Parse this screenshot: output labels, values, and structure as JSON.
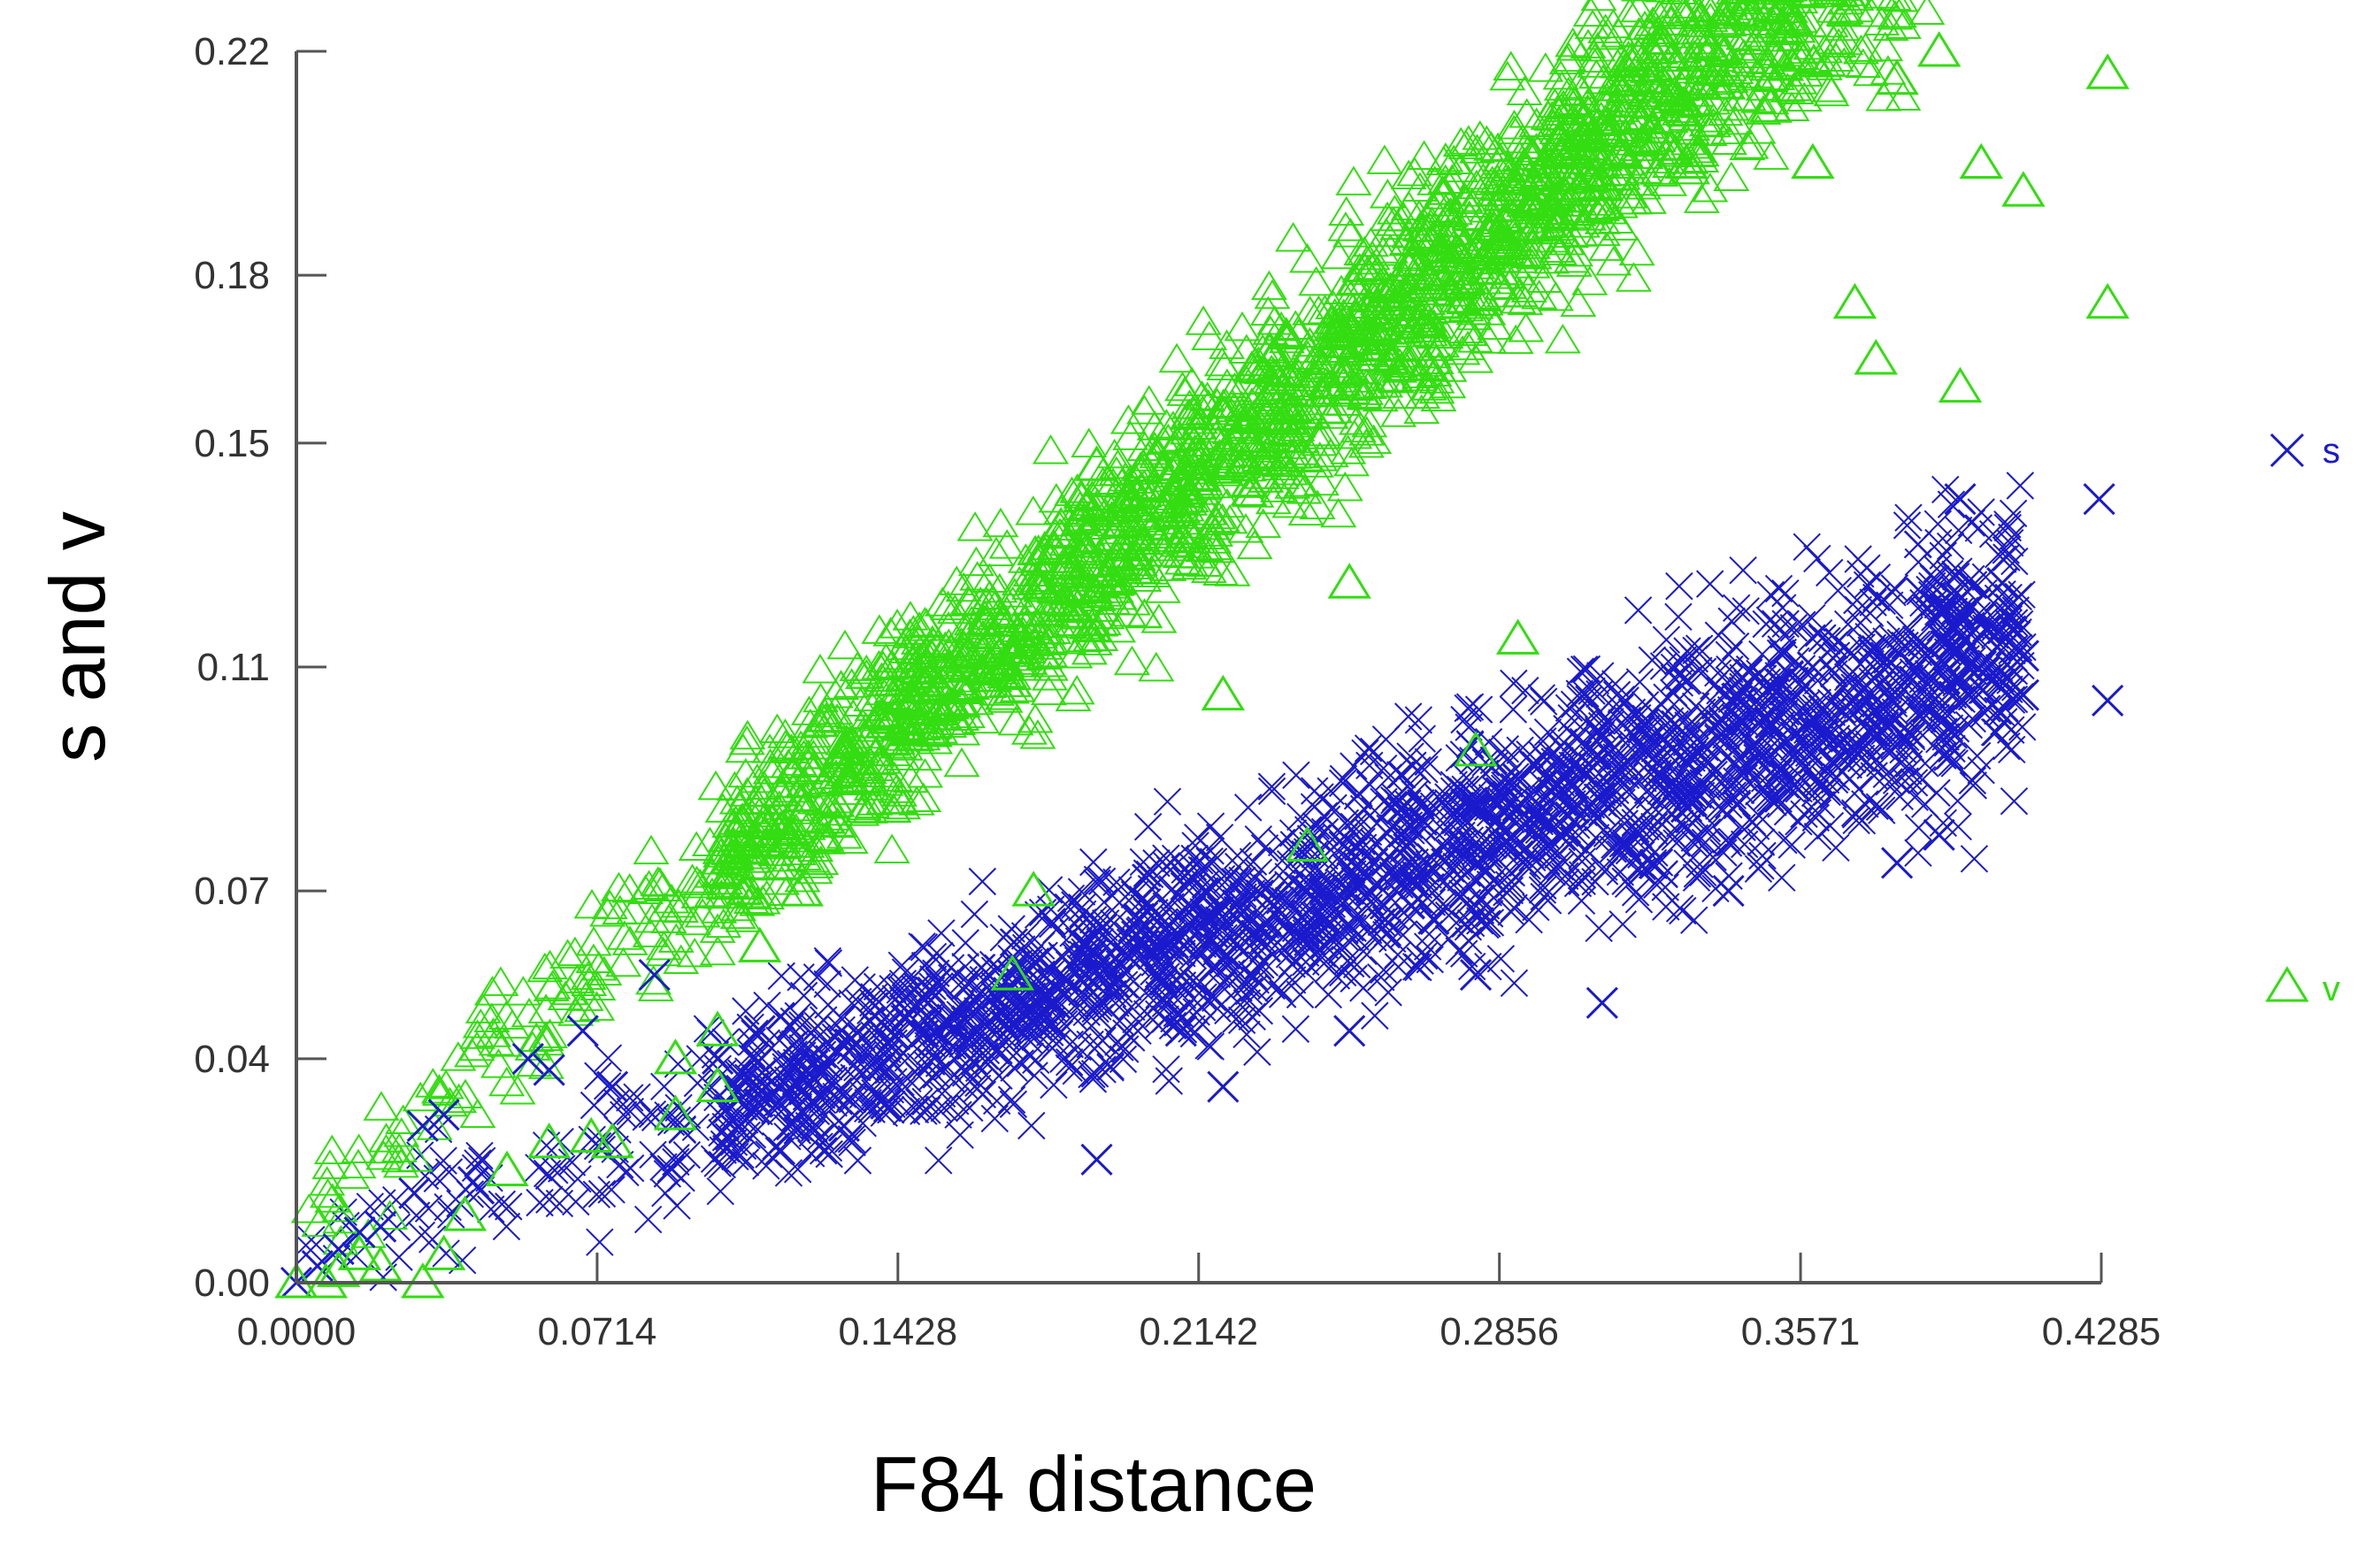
{
  "chart_data": {
    "type": "scatter",
    "title": "",
    "xlabel": "F84 distance",
    "ylabel": "s and v",
    "xlim": [
      0,
      0.4285
    ],
    "ylim": [
      0,
      0.22
    ],
    "x_ticks": [
      "0.0000",
      "0.0714",
      "0.1428",
      "0.2142",
      "0.2856",
      "0.3571",
      "0.4285"
    ],
    "y_ticks": [
      "0.00",
      "0.04",
      "0.07",
      "0.11",
      "0.15",
      "0.18",
      "0.22"
    ],
    "grid": false,
    "legend_position": "right",
    "series": [
      {
        "name": "s",
        "marker": "x",
        "color": "#1a1acc",
        "trend": {
          "slope": 0.27,
          "intercept": 0.004,
          "spread": 0.013,
          "x_range": [
            0.0,
            0.41
          ]
        },
        "points": [
          [
            0.0,
            0.0
          ],
          [
            0.005,
            0.003
          ],
          [
            0.01,
            0.006
          ],
          [
            0.015,
            0.009
          ],
          [
            0.02,
            0.01
          ],
          [
            0.028,
            0.016
          ],
          [
            0.03,
            0.028
          ],
          [
            0.035,
            0.03
          ],
          [
            0.042,
            0.018
          ],
          [
            0.055,
            0.04
          ],
          [
            0.06,
            0.038
          ],
          [
            0.068,
            0.045
          ],
          [
            0.075,
            0.035
          ],
          [
            0.085,
            0.055
          ],
          [
            0.1,
            0.04
          ],
          [
            0.11,
            0.045
          ],
          [
            0.13,
            0.028
          ],
          [
            0.14,
            0.032
          ],
          [
            0.15,
            0.05
          ],
          [
            0.16,
            0.04
          ],
          [
            0.17,
            0.055
          ],
          [
            0.18,
            0.05
          ],
          [
            0.19,
            0.022
          ],
          [
            0.2,
            0.065
          ],
          [
            0.21,
            0.045
          ],
          [
            0.22,
            0.035
          ],
          [
            0.23,
            0.06
          ],
          [
            0.24,
            0.07
          ],
          [
            0.25,
            0.045
          ],
          [
            0.26,
            0.085
          ],
          [
            0.27,
            0.065
          ],
          [
            0.28,
            0.055
          ],
          [
            0.29,
            0.09
          ],
          [
            0.3,
            0.08
          ],
          [
            0.31,
            0.05
          ],
          [
            0.32,
            0.095
          ],
          [
            0.33,
            0.085
          ],
          [
            0.34,
            0.07
          ],
          [
            0.35,
            0.1
          ],
          [
            0.36,
            0.11
          ],
          [
            0.37,
            0.095
          ],
          [
            0.38,
            0.075
          ],
          [
            0.39,
            0.08
          ],
          [
            0.395,
            0.14
          ],
          [
            0.405,
            0.125
          ],
          [
            0.41,
            0.105
          ],
          [
            0.41,
            0.112
          ],
          [
            0.428,
            0.14
          ],
          [
            0.43,
            0.104
          ]
        ]
      },
      {
        "name": "v",
        "marker": "triangle",
        "color": "#33dd11",
        "trend": {
          "slope": 0.62,
          "intercept": 0.012,
          "spread": 0.013,
          "x_range": [
            0.0,
            0.39
          ]
        },
        "points": [
          [
            0.0,
            0.0
          ],
          [
            0.007,
            0.0
          ],
          [
            0.01,
            0.002
          ],
          [
            0.015,
            0.005
          ],
          [
            0.02,
            0.003
          ],
          [
            0.03,
            0.0
          ],
          [
            0.035,
            0.005
          ],
          [
            0.04,
            0.012
          ],
          [
            0.05,
            0.02
          ],
          [
            0.06,
            0.025
          ],
          [
            0.07,
            0.026
          ],
          [
            0.075,
            0.025
          ],
          [
            0.09,
            0.03
          ],
          [
            0.1,
            0.045
          ],
          [
            0.11,
            0.06
          ],
          [
            0.12,
            0.07
          ],
          [
            0.13,
            0.095
          ],
          [
            0.14,
            0.1
          ],
          [
            0.16,
            0.11
          ],
          [
            0.19,
            0.146
          ],
          [
            0.22,
            0.155
          ],
          [
            0.25,
            0.17
          ],
          [
            0.28,
            0.185
          ],
          [
            0.31,
            0.196
          ],
          [
            0.33,
            0.2
          ],
          [
            0.35,
            0.21
          ],
          [
            0.36,
            0.2
          ],
          [
            0.37,
            0.175
          ],
          [
            0.375,
            0.165
          ],
          [
            0.38,
            0.215
          ],
          [
            0.39,
            0.22
          ],
          [
            0.395,
            0.16
          ],
          [
            0.4,
            0.2
          ],
          [
            0.41,
            0.195
          ],
          [
            0.43,
            0.175
          ],
          [
            0.43,
            0.216
          ],
          [
            0.22,
            0.105
          ],
          [
            0.25,
            0.125
          ],
          [
            0.24,
            0.078
          ],
          [
            0.17,
            0.055
          ],
          [
            0.175,
            0.07
          ],
          [
            0.28,
            0.095
          ],
          [
            0.29,
            0.115
          ],
          [
            0.1,
            0.035
          ],
          [
            0.09,
            0.04
          ]
        ]
      }
    ]
  }
}
